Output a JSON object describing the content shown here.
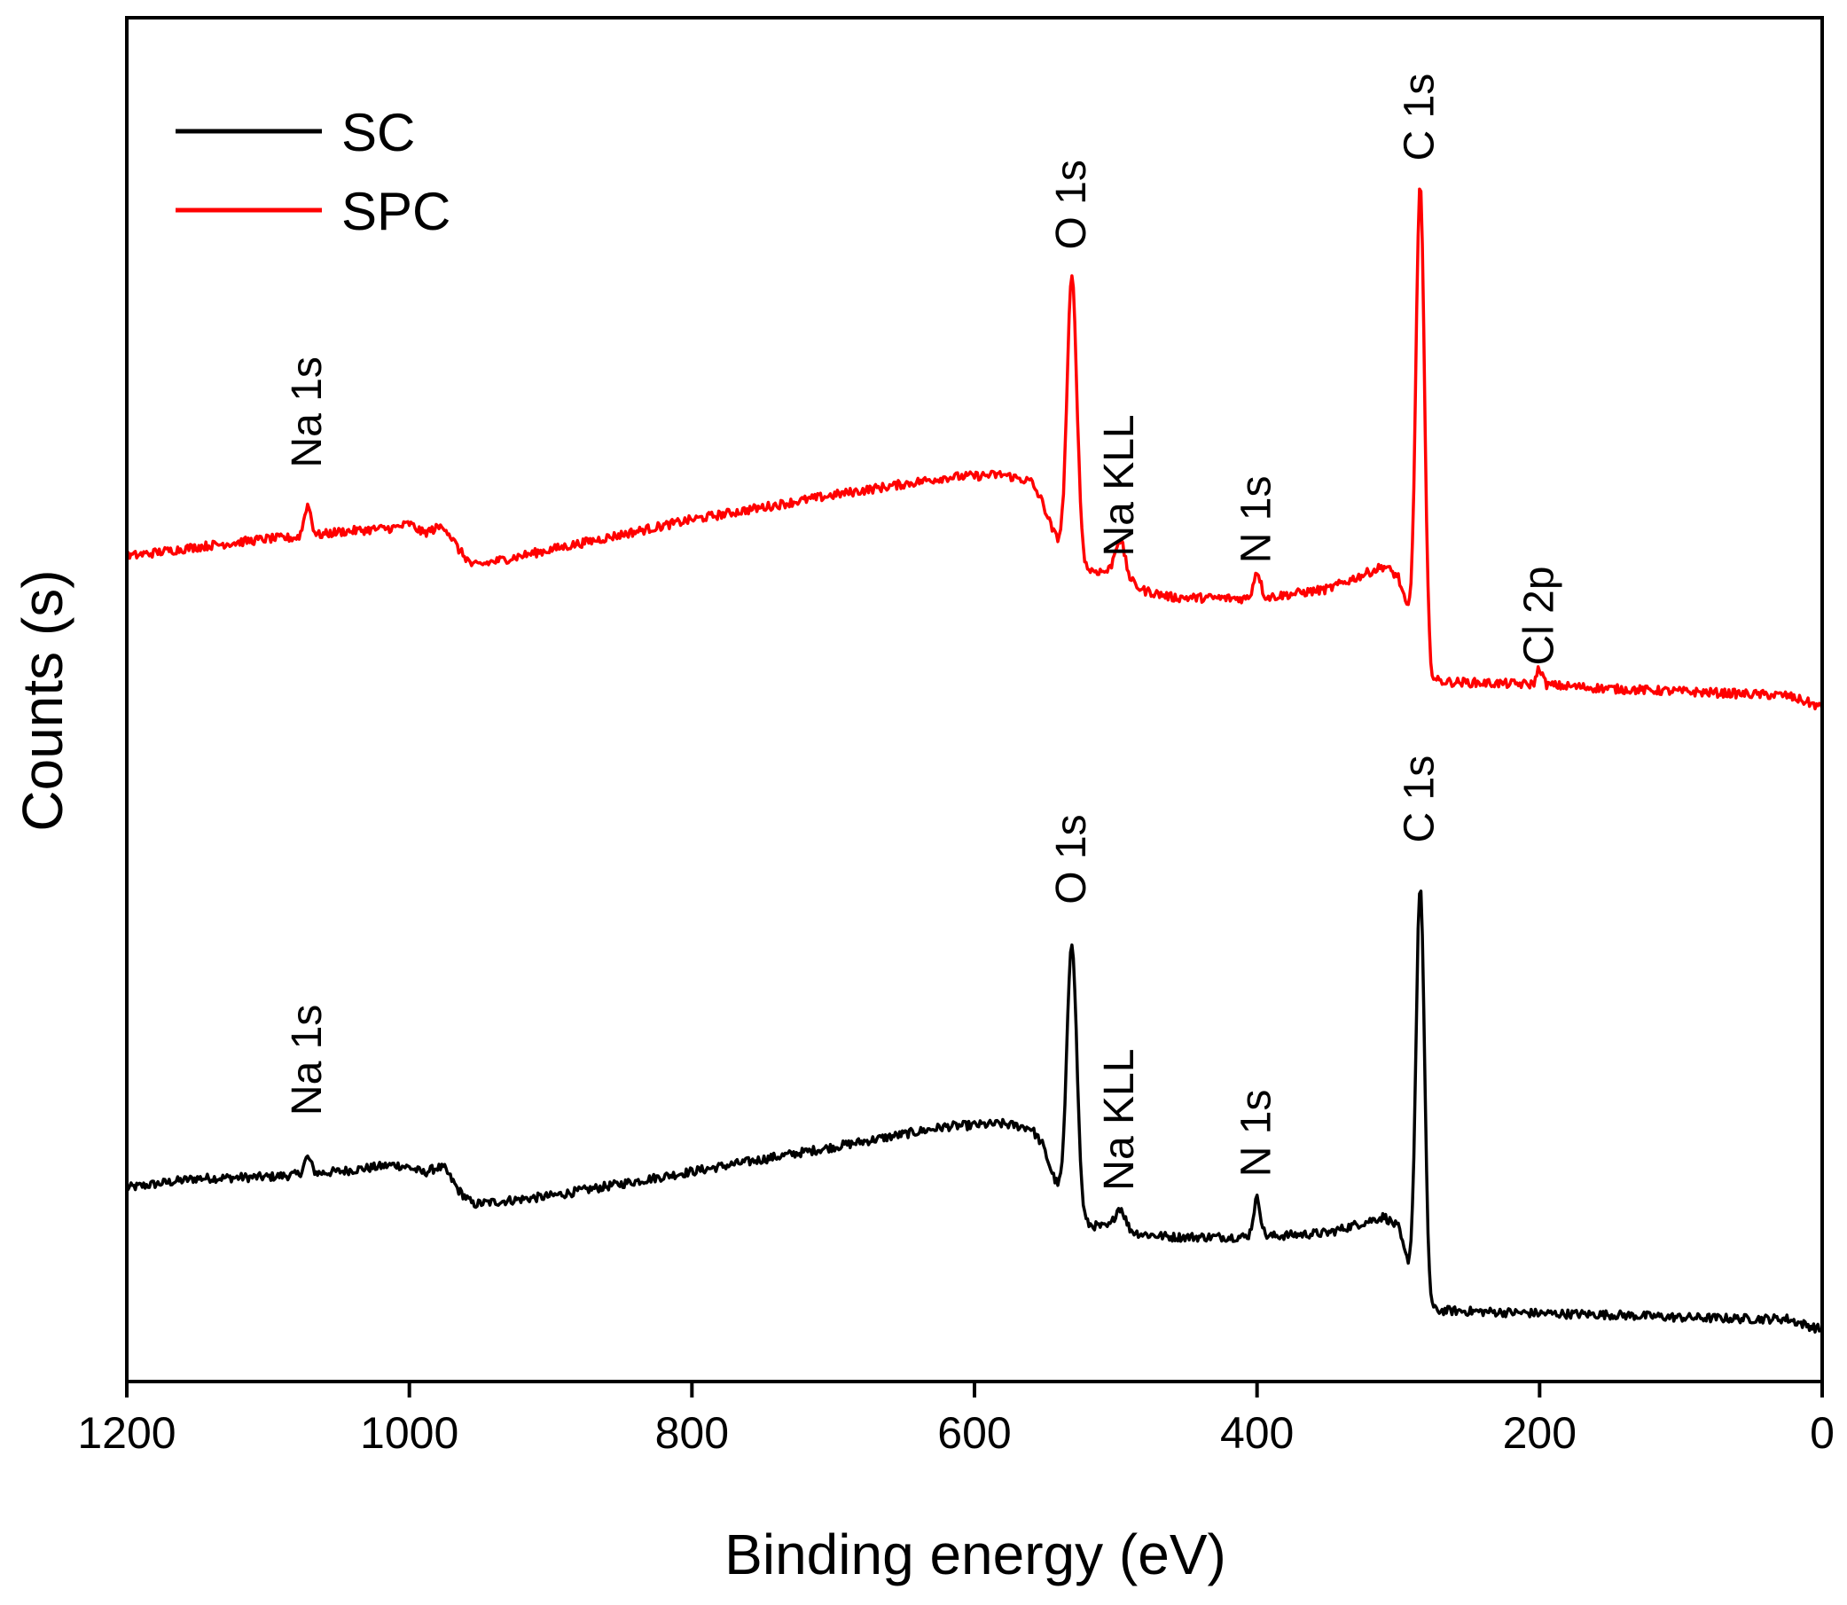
{
  "chart_data": {
    "type": "line",
    "title": "",
    "xlabel": "Binding energy (eV)",
    "ylabel": "Counts (s)",
    "xlim": [
      1200,
      0
    ],
    "ylim": [
      0,
      100
    ],
    "x_ticks": [
      "1200",
      "1000",
      "800",
      "600",
      "400",
      "200",
      "0"
    ],
    "x_tick_values": [
      1200,
      1000,
      800,
      600,
      400,
      200,
      0
    ],
    "y_ticks": [],
    "legend": {
      "position": "top-left",
      "entries": [
        "SC",
        "SPC"
      ]
    },
    "series": [
      {
        "name": "SPC",
        "color": "#ff0000",
        "baseline_points": [
          [
            1200,
            60.5
          ],
          [
            1150,
            61.2
          ],
          [
            1100,
            61.8
          ],
          [
            1075,
            61.9
          ],
          [
            1050,
            62.3
          ],
          [
            1010,
            62.6
          ],
          [
            1000,
            62.9
          ],
          [
            990,
            62.2
          ],
          [
            980,
            62.6
          ],
          [
            975,
            62.7
          ],
          [
            965,
            61.0
          ],
          [
            955,
            59.8
          ],
          [
            900,
            61.0
          ],
          [
            800,
            63.2
          ],
          [
            700,
            65.0
          ],
          [
            620,
            66.3
          ],
          [
            580,
            66.5
          ],
          [
            560,
            66.0
          ],
          [
            552,
            64.5
          ],
          [
            545,
            62.5
          ],
          [
            537,
            60.6
          ],
          [
            529,
            60.2
          ],
          [
            520,
            59.5
          ],
          [
            500,
            59.3
          ],
          [
            480,
            58.0
          ],
          [
            460,
            57.5
          ],
          [
            400,
            57.4
          ],
          [
            350,
            58.1
          ],
          [
            310,
            59.8
          ],
          [
            300,
            59.0
          ],
          [
            292,
            55.8
          ],
          [
            287,
            53.5
          ],
          [
            280,
            51.5
          ],
          [
            265,
            51.3
          ],
          [
            200,
            51.1
          ],
          [
            150,
            50.8
          ],
          [
            100,
            50.6
          ],
          [
            50,
            50.4
          ],
          [
            25,
            50.3
          ],
          [
            10,
            49.8
          ],
          [
            0,
            49.4
          ]
        ],
        "peaks": [
          {
            "label": "Na 1s",
            "x": 1072,
            "height": 2.3,
            "width": 2.5
          },
          {
            "label": "O 1s",
            "x": 531,
            "height": 20.6,
            "width": 3.5
          },
          {
            "label": "Na KLL",
            "x": 497,
            "height": 2.6,
            "width": 3.5
          },
          {
            "label": "N 1s",
            "x": 400,
            "height": 2.0,
            "width": 2.5
          },
          {
            "label": "C 1s",
            "x": 284.5,
            "height": 35.0,
            "width": 3.0
          },
          {
            "label": "Cl 2p",
            "x": 200,
            "height": 1.2,
            "width": 2.0
          }
        ]
      },
      {
        "name": "SC",
        "color": "#000000",
        "baseline_points": [
          [
            1200,
            14.2
          ],
          [
            1150,
            14.9
          ],
          [
            1100,
            15.0
          ],
          [
            1075,
            15.2
          ],
          [
            1050,
            15.4
          ],
          [
            1010,
            15.9
          ],
          [
            1000,
            15.7
          ],
          [
            990,
            15.3
          ],
          [
            980,
            15.7
          ],
          [
            975,
            15.6
          ],
          [
            965,
            14.0
          ],
          [
            955,
            13.0
          ],
          [
            900,
            13.6
          ],
          [
            800,
            15.4
          ],
          [
            700,
            17.2
          ],
          [
            620,
            18.7
          ],
          [
            580,
            18.9
          ],
          [
            560,
            18.6
          ],
          [
            552,
            17.4
          ],
          [
            545,
            15.3
          ],
          [
            538,
            13.4
          ],
          [
            528,
            11.8
          ],
          [
            520,
            11.5
          ],
          [
            500,
            11.2
          ],
          [
            480,
            10.8
          ],
          [
            460,
            10.6
          ],
          [
            400,
            10.6
          ],
          [
            350,
            10.9
          ],
          [
            310,
            12.1
          ],
          [
            300,
            11.3
          ],
          [
            292,
            8.0
          ],
          [
            287,
            5.8
          ],
          [
            280,
            5.2
          ],
          [
            265,
            5.2
          ],
          [
            200,
            5.0
          ],
          [
            150,
            4.9
          ],
          [
            100,
            4.7
          ],
          [
            50,
            4.6
          ],
          [
            25,
            4.6
          ],
          [
            10,
            4.1
          ],
          [
            0,
            3.8
          ]
        ],
        "peaks": [
          {
            "label": "Na 1s",
            "x": 1072,
            "height": 1.2,
            "width": 2.5
          },
          {
            "label": "O 1s",
            "x": 531,
            "height": 20.0,
            "width": 3.5
          },
          {
            "label": "Na KLL",
            "x": 497,
            "height": 1.6,
            "width": 3.5
          },
          {
            "label": "N 1s",
            "x": 400,
            "height": 2.8,
            "width": 2.5
          },
          {
            "label": "C 1s",
            "x": 284.5,
            "height": 30.8,
            "width": 3.0
          }
        ]
      }
    ],
    "annotations": [
      {
        "text": "Na 1s",
        "series": "SPC",
        "x": 1072,
        "y": 67
      },
      {
        "text": "O 1s",
        "series": "SPC",
        "x": 531,
        "y": 83
      },
      {
        "text": "Na KLL",
        "series": "SPC",
        "x": 497,
        "y": 60.5
      },
      {
        "text": "N 1s",
        "series": "SPC",
        "x": 400,
        "y": 60
      },
      {
        "text": "C 1s",
        "series": "SPC",
        "x": 284.5,
        "y": 89.5
      },
      {
        "text": "Cl 2p",
        "series": "SPC",
        "x": 200,
        "y": 52.5
      },
      {
        "text": "Na 1s",
        "series": "SC",
        "x": 1072,
        "y": 19.5
      },
      {
        "text": "O 1s",
        "series": "SC",
        "x": 531,
        "y": 35
      },
      {
        "text": "Na KLL",
        "series": "SC",
        "x": 497,
        "y": 14
      },
      {
        "text": "N 1s",
        "series": "SC",
        "x": 400,
        "y": 15
      },
      {
        "text": "C 1s",
        "series": "SC",
        "x": 284.5,
        "y": 39.5
      }
    ]
  }
}
